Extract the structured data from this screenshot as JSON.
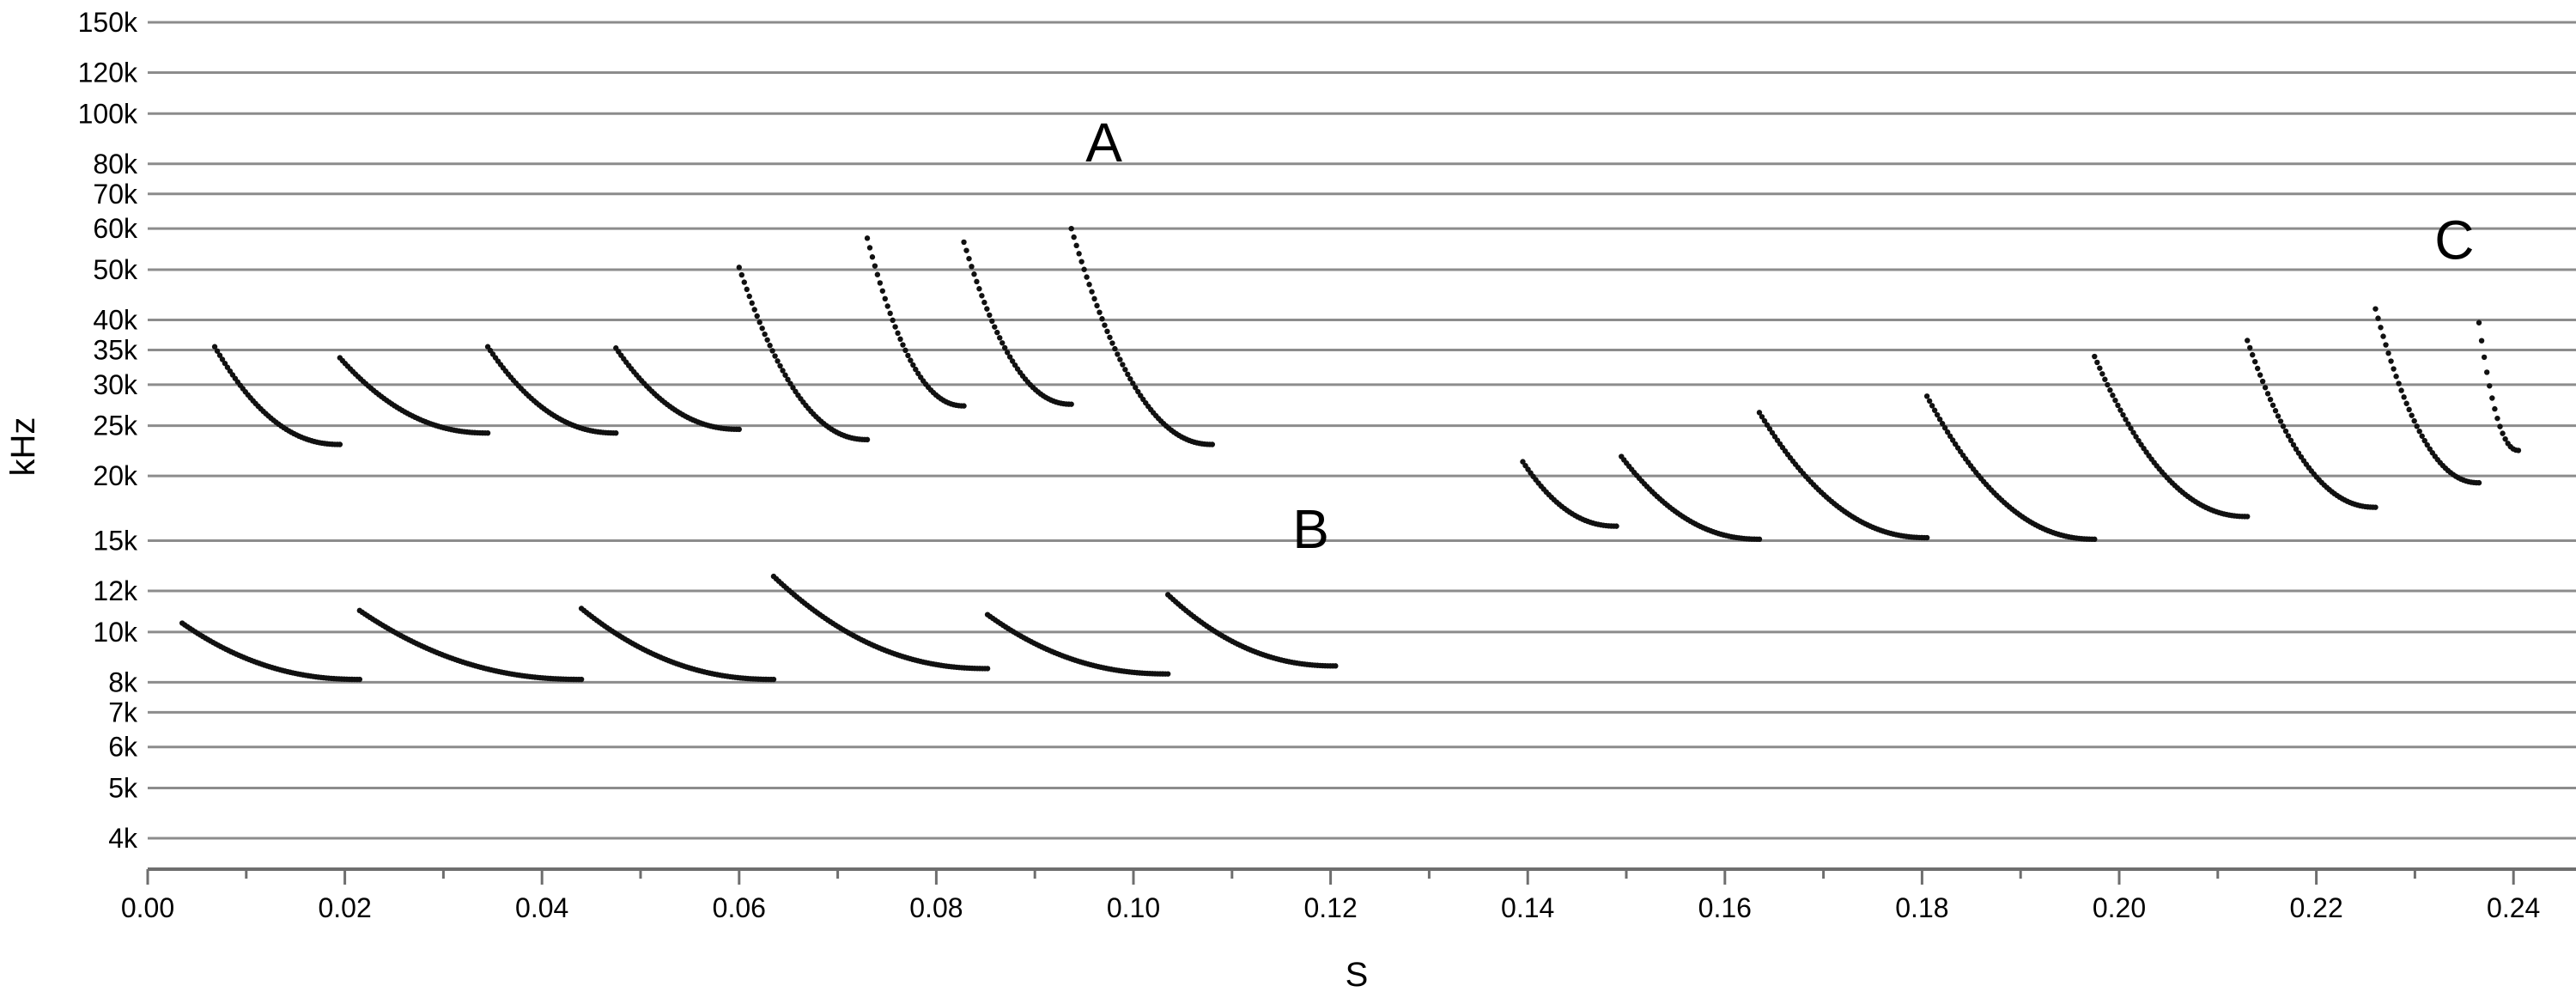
{
  "chart_data": {
    "type": "scatter",
    "title": "",
    "xlabel": "S",
    "ylabel": "kHz",
    "xlim": [
      0.0,
      0.25
    ],
    "ylim_hz": [
      3500,
      150000
    ],
    "y_scale": "log",
    "grid": "horizontal",
    "x_ticks": [
      0.0,
      0.02,
      0.04,
      0.06,
      0.08,
      0.1,
      0.12,
      0.14,
      0.16,
      0.18,
      0.2,
      0.22,
      0.24
    ],
    "x_tick_labels": [
      "0.00",
      "0.02",
      "0.04",
      "0.06",
      "0.08",
      "0.10",
      "0.12",
      "0.14",
      "0.16",
      "0.18",
      "0.20",
      "0.22",
      "0.24"
    ],
    "y_ticks": [
      150000,
      120000,
      100000,
      80000,
      70000,
      60000,
      50000,
      40000,
      35000,
      30000,
      25000,
      20000,
      15000,
      12000,
      10000,
      8000,
      7000,
      6000,
      5000,
      4000
    ],
    "y_tick_labels": [
      "150k",
      "120k",
      "100k",
      "80k",
      "70k",
      "60k",
      "50k",
      "40k",
      "35k",
      "30k",
      "25k",
      "20k",
      "15k",
      "12k",
      "10k",
      "8k",
      "7k",
      "6k",
      "5k",
      "4k"
    ],
    "annotations": [
      {
        "text": "A",
        "x": 0.097,
        "y": 88000
      },
      {
        "text": "B",
        "x": 0.118,
        "y": 15800
      },
      {
        "text": "C",
        "x": 0.234,
        "y": 57000
      }
    ],
    "series": [
      {
        "group": "A",
        "calls": [
          {
            "t0": 0.0068,
            "t1": 0.0195,
            "f_start": 35500,
            "f_end": 23000
          },
          {
            "t0": 0.0195,
            "t1": 0.0345,
            "f_start": 33800,
            "f_end": 24200
          },
          {
            "t0": 0.0345,
            "t1": 0.0475,
            "f_start": 35500,
            "f_end": 24200
          },
          {
            "t0": 0.0475,
            "t1": 0.06,
            "f_start": 35300,
            "f_end": 24600
          },
          {
            "t0": 0.06,
            "t1": 0.073,
            "f_start": 50500,
            "f_end": 23500
          },
          {
            "t0": 0.073,
            "t1": 0.0828,
            "f_start": 57500,
            "f_end": 27300
          },
          {
            "t0": 0.0828,
            "t1": 0.0937,
            "f_start": 56500,
            "f_end": 27500
          },
          {
            "t0": 0.0937,
            "t1": 0.108,
            "f_start": 60000,
            "f_end": 23000
          }
        ]
      },
      {
        "group": "B",
        "calls": [
          {
            "t0": 0.0035,
            "t1": 0.0215,
            "f_start": 10400,
            "f_end": 8100
          },
          {
            "t0": 0.0215,
            "t1": 0.044,
            "f_start": 11000,
            "f_end": 8100
          },
          {
            "t0": 0.044,
            "t1": 0.0635,
            "f_start": 11100,
            "f_end": 8100
          },
          {
            "t0": 0.0635,
            "t1": 0.0852,
            "f_start": 12800,
            "f_end": 8500
          },
          {
            "t0": 0.0852,
            "t1": 0.1035,
            "f_start": 10800,
            "f_end": 8300
          },
          {
            "t0": 0.1035,
            "t1": 0.1205,
            "f_start": 11800,
            "f_end": 8600
          }
        ]
      },
      {
        "group": "C",
        "calls": [
          {
            "t0": 0.1395,
            "t1": 0.149,
            "f_start": 21300,
            "f_end": 16000
          },
          {
            "t0": 0.1495,
            "t1": 0.1635,
            "f_start": 21800,
            "f_end": 15100
          },
          {
            "t0": 0.1635,
            "t1": 0.1805,
            "f_start": 26500,
            "f_end": 15200
          },
          {
            "t0": 0.1805,
            "t1": 0.1975,
            "f_start": 28500,
            "f_end": 15100
          },
          {
            "t0": 0.1975,
            "t1": 0.213,
            "f_start": 34000,
            "f_end": 16700
          },
          {
            "t0": 0.213,
            "t1": 0.226,
            "f_start": 36500,
            "f_end": 17400
          },
          {
            "t0": 0.226,
            "t1": 0.2365,
            "f_start": 42000,
            "f_end": 19400
          },
          {
            "t0": 0.2365,
            "t1": 0.2405,
            "f_start": 39500,
            "f_end": 22400
          }
        ]
      }
    ]
  }
}
